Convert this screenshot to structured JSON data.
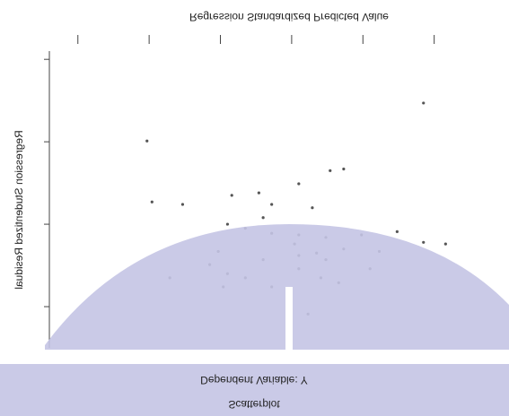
{
  "chart_data": {
    "type": "scatter",
    "title": "Scatterplot",
    "subtitle": "Dependent Variable: Y",
    "x_label": "Regression Standardized Predicted Value",
    "y_label": "Regression Studentized Residual",
    "xlim": [
      -3.4,
      3.05
    ],
    "ylim": [
      -2.1,
      1.5
    ],
    "xticks": [
      -3,
      -2,
      -1,
      0,
      1,
      2
    ],
    "yticks": [
      -2,
      -1,
      0,
      1
    ],
    "color": "#555555",
    "series": [
      {
        "name": null,
        "x": [
          -2.03,
          0.73,
          0.54,
          0.1,
          -0.46,
          -0.84,
          -0.28,
          0.29,
          -0.4,
          -0.9,
          -0.65,
          -0.28,
          0.1,
          0.48,
          0.98,
          1.48,
          1.85,
          2.16,
          -1.03,
          0.04,
          0.35,
          0.73,
          -0.4,
          0.1,
          0.48,
          -1.15,
          -0.9,
          -0.65,
          -0.28,
          0.1,
          0.41,
          0.66,
          1.1,
          -1.71,
          0.23,
          -0.96,
          1.23,
          -1.53,
          1.85,
          -1.96
        ],
        "values": [
          -1.01,
          -0.67,
          -0.65,
          -0.49,
          -0.38,
          -0.35,
          -0.24,
          -0.2,
          -0.08,
          0,
          0.05,
          0.11,
          0.13,
          0.16,
          0.13,
          0.09,
          0.22,
          0.24,
          0.33,
          0.24,
          0.35,
          0.3,
          0.43,
          0.38,
          0.43,
          0.49,
          0.6,
          0.65,
          0.76,
          0.54,
          0.65,
          0.71,
          0.54,
          0.65,
          1.09,
          0.76,
          0.33,
          -0.24,
          -1.47,
          -0.27
        ]
      }
    ]
  }
}
